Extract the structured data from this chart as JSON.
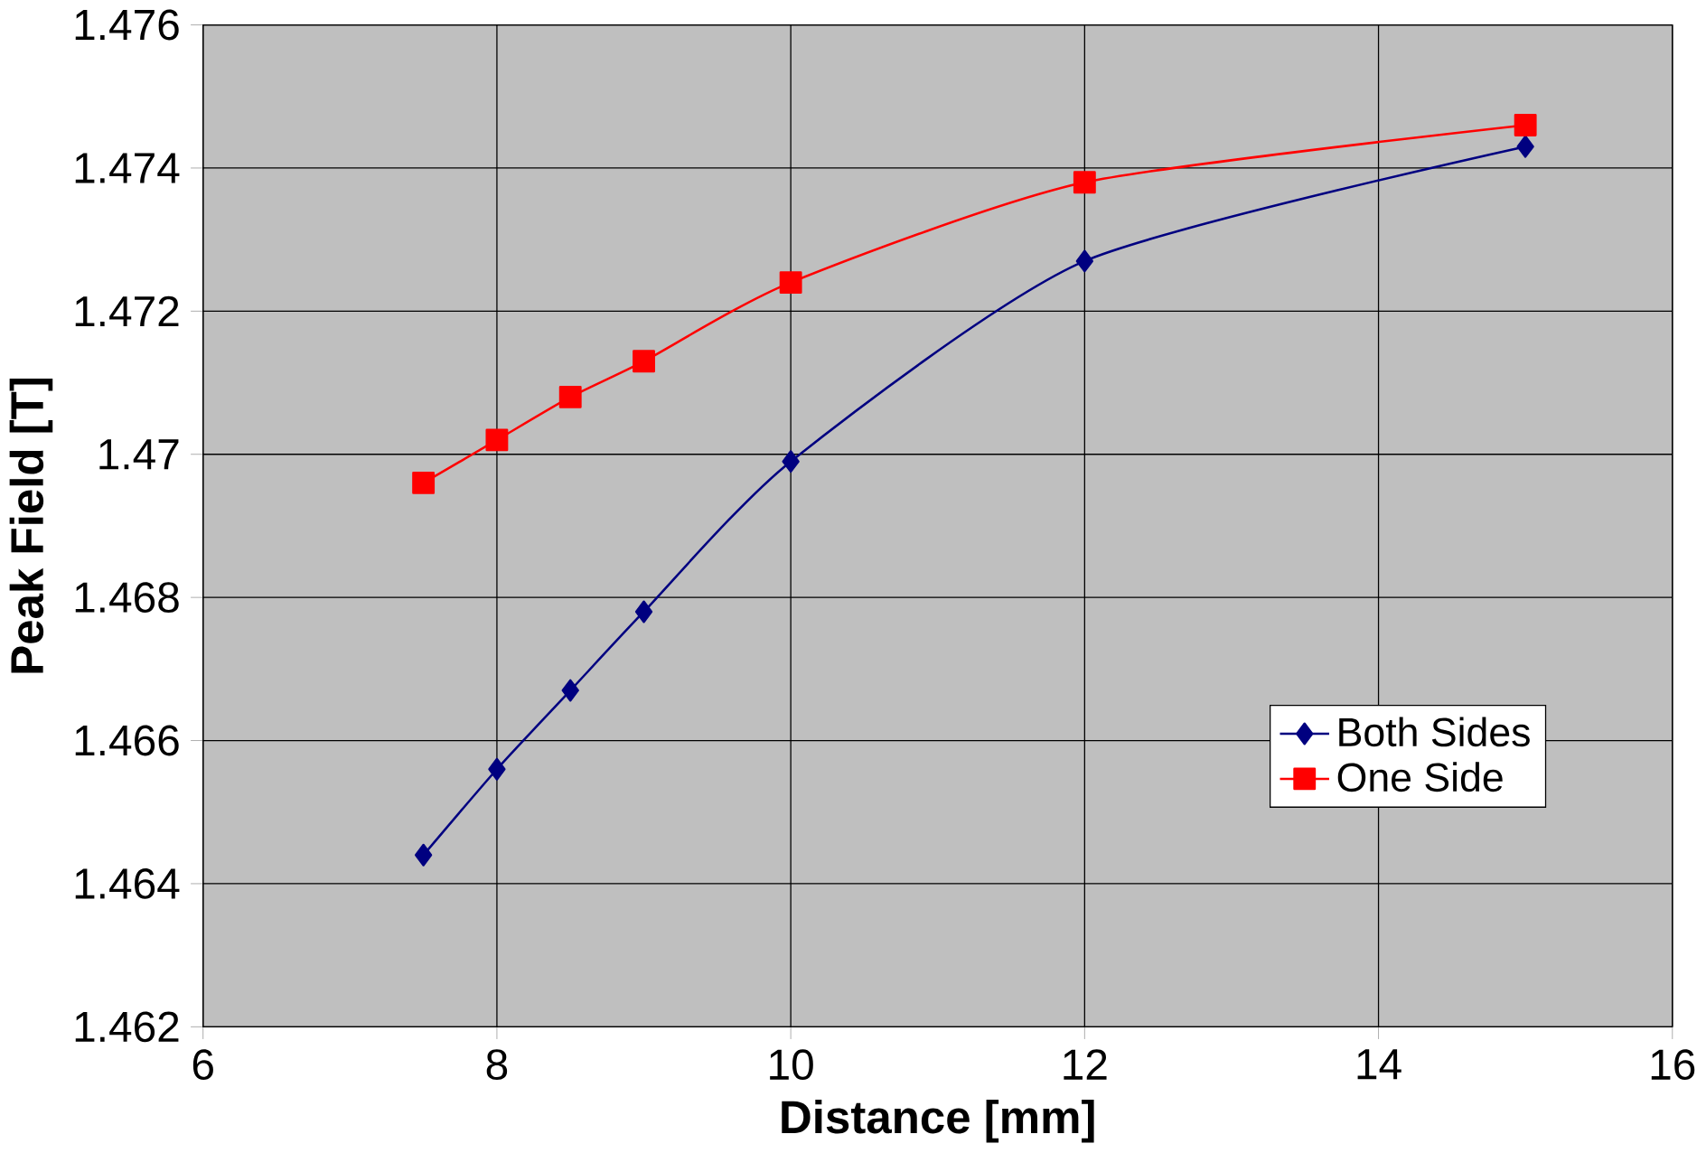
{
  "chart_data": {
    "type": "line",
    "xlabel": "Distance [mm]",
    "ylabel": "Peak Field [T]",
    "x": [
      7.5,
      8,
      8.5,
      9,
      10,
      12,
      15
    ],
    "series": [
      {
        "name": "Both Sides",
        "color": "#000080",
        "marker": "diamond",
        "values": [
          1.4644,
          1.4656,
          1.4667,
          1.4678,
          1.4699,
          1.4727,
          1.4743
        ]
      },
      {
        "name": "One Side",
        "color": "#ff0000",
        "marker": "square",
        "values": [
          1.4696,
          1.4702,
          1.4708,
          1.4713,
          1.4724,
          1.4738,
          1.4746
        ]
      }
    ],
    "xlim": [
      6,
      16
    ],
    "xticks": [
      6,
      8,
      10,
      12,
      14,
      16
    ],
    "ylim": [
      1.462,
      1.476
    ],
    "yticks": [
      1.462,
      1.464,
      1.466,
      1.468,
      1.47,
      1.472,
      1.474,
      1.476
    ],
    "grid": true,
    "legend": "bottom right"
  }
}
